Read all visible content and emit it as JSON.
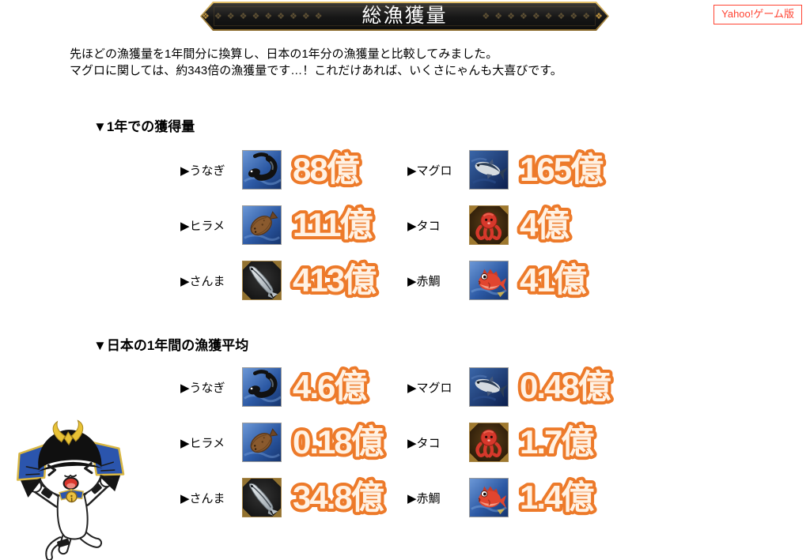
{
  "banner": {
    "title": "総漁獲量",
    "decor_segment": "❖❖❖❖❖❖❖❖❖",
    "decor_end": "❖"
  },
  "badge": {
    "label": "Yahoo!ゲーム版"
  },
  "intro": {
    "line1": "先ほどの漁獲量を1年間分に換算し、日本の1年分の漁獲量と比較してみました。",
    "line2": "マグロに関しては、約343倍の漁獲量です…！これだけあれば、いくさにゃんも大喜びです。"
  },
  "colors": {
    "value_stroke_orange": "#ed7a2a",
    "value_fill": "#fff2e4",
    "badge_red": "#ff4433",
    "banner_gold": "#bd9545"
  },
  "sections": [
    {
      "heading": "▼1年での獲得量",
      "items": [
        {
          "label": "▶うなぎ",
          "icon": "eel-icon",
          "value": "88億"
        },
        {
          "label": "▶マグロ",
          "icon": "tuna-icon",
          "value": "165億"
        },
        {
          "label": "▶ヒラメ",
          "icon": "flounder-icon",
          "value": "111億"
        },
        {
          "label": "▶タコ",
          "icon": "octopus-icon",
          "value": "4億"
        },
        {
          "label": "▶さんま",
          "icon": "saury-icon",
          "value": "413億"
        },
        {
          "label": "▶赤鯛",
          "icon": "seabream-icon",
          "value": "41億"
        }
      ]
    },
    {
      "heading": "▼日本の1年間の漁獲平均",
      "items": [
        {
          "label": "▶うなぎ",
          "icon": "eel-icon",
          "value": "4.6億"
        },
        {
          "label": "▶マグロ",
          "icon": "tuna-icon",
          "value": "0.48億"
        },
        {
          "label": "▶ヒラメ",
          "icon": "flounder-icon",
          "value": "0.18億"
        },
        {
          "label": "▶タコ",
          "icon": "octopus-icon",
          "value": "1.7億"
        },
        {
          "label": "▶さんま",
          "icon": "saury-icon",
          "value": "34.8億"
        },
        {
          "label": "▶赤鯛",
          "icon": "seabream-icon",
          "value": "1.4億"
        }
      ]
    }
  ]
}
